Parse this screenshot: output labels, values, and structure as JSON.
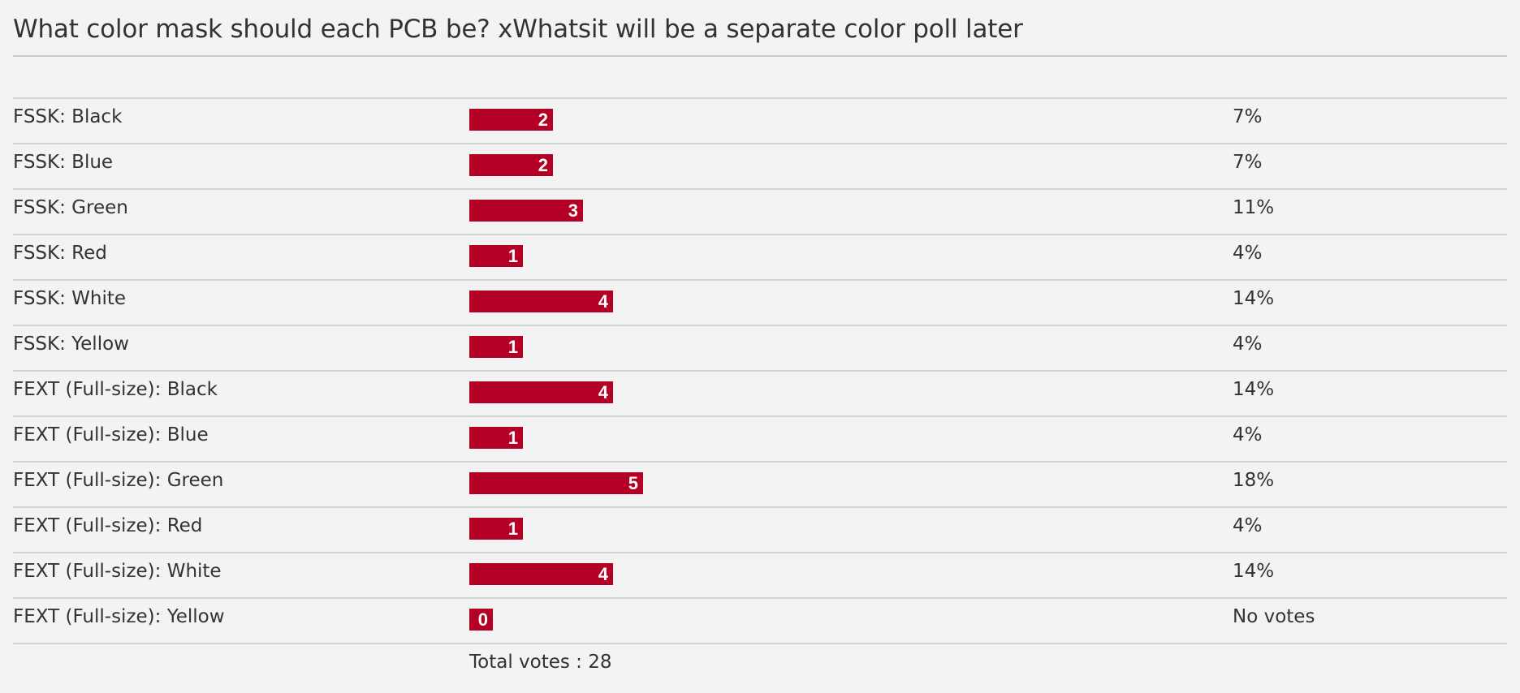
{
  "poll": {
    "title": "What color mask should each PCB be? xWhatsit will be a separate color poll later",
    "total_votes_label": "Total votes : 28",
    "bar_color": "#b50025",
    "options": [
      {
        "label": "FSSK: Black",
        "votes": 2,
        "votes_text": "2",
        "percent_text": "7%"
      },
      {
        "label": "FSSK: Blue",
        "votes": 2,
        "votes_text": "2",
        "percent_text": "7%"
      },
      {
        "label": "FSSK: Green",
        "votes": 3,
        "votes_text": "3",
        "percent_text": "11%"
      },
      {
        "label": "FSSK: Red",
        "votes": 1,
        "votes_text": "1",
        "percent_text": "4%"
      },
      {
        "label": "FSSK: White",
        "votes": 4,
        "votes_text": "4",
        "percent_text": "14%"
      },
      {
        "label": "FSSK: Yellow",
        "votes": 1,
        "votes_text": "1",
        "percent_text": "4%"
      },
      {
        "label": "FEXT (Full-size): Black",
        "votes": 4,
        "votes_text": "4",
        "percent_text": "14%"
      },
      {
        "label": "FEXT (Full-size): Blue",
        "votes": 1,
        "votes_text": "1",
        "percent_text": "4%"
      },
      {
        "label": "FEXT (Full-size): Green",
        "votes": 5,
        "votes_text": "5",
        "percent_text": "18%"
      },
      {
        "label": "FEXT (Full-size): Red",
        "votes": 1,
        "votes_text": "1",
        "percent_text": "4%"
      },
      {
        "label": "FEXT (Full-size): White",
        "votes": 4,
        "votes_text": "4",
        "percent_text": "14%"
      },
      {
        "label": "FEXT (Full-size): Yellow",
        "votes": 0,
        "votes_text": "0",
        "percent_text": "No votes"
      }
    ]
  }
}
